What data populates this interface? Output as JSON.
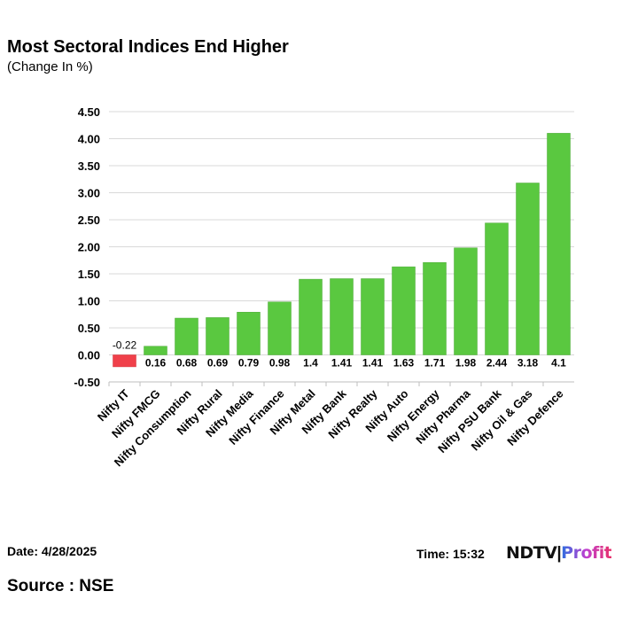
{
  "header": {
    "title": "Most Sectoral Indices End Higher",
    "subtitle": "(Change In %)"
  },
  "footer": {
    "date": "Date: 4/28/2025",
    "time": "Time: 15:32",
    "source": "Source : NSE",
    "logo_ndtv": "NDTV",
    "logo_profit": "Profit"
  },
  "colors": {
    "positive": "#5ac840",
    "negative": "#f0404a"
  },
  "chart_data": {
    "type": "bar",
    "title": "Most Sectoral Indices End Higher",
    "subtitle": "(Change In %)",
    "categories": [
      "Nifty IT",
      "Nifty FMCG",
      "Nifty Consumption",
      "Nifty Rural",
      "Nifty Media",
      "Nifty Finance",
      "Nifty Metal",
      "Nifty Bank",
      "Nifty Realty",
      "Nifty Auto",
      "Nifty Energy",
      "Nifty Pharma",
      "Nifty PSU Bank",
      "Nifty Oil & Gas",
      "Nifty Defence"
    ],
    "values": [
      -0.22,
      0.16,
      0.68,
      0.69,
      0.79,
      0.98,
      1.4,
      1.41,
      1.41,
      1.63,
      1.71,
      1.98,
      2.44,
      3.18,
      4.1
    ],
    "data_labels": [
      "-0.22",
      "0.16",
      "0.68",
      "0.69",
      "0.79",
      "0.98",
      "1.4",
      "1.41",
      "1.41",
      "1.63",
      "1.71",
      "1.98",
      "2.44",
      "3.18",
      "4.1"
    ],
    "yticks": [
      "4.50",
      "4.00",
      "3.50",
      "3.00",
      "2.50",
      "2.00",
      "1.50",
      "1.00",
      "0.50",
      "0.00",
      "-0.50"
    ],
    "ylim": [
      -0.5,
      4.5
    ],
    "grid": true,
    "legend": "none"
  }
}
